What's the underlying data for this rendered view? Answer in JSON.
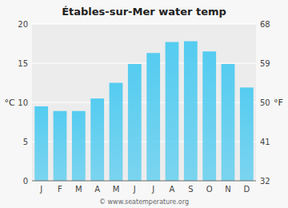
{
  "chart_data": {
    "type": "bar",
    "title": "Étables-sur-Mer water temp",
    "categories": [
      "J",
      "F",
      "M",
      "A",
      "M",
      "J",
      "J",
      "A",
      "S",
      "O",
      "N",
      "D"
    ],
    "values": [
      9.5,
      8.9,
      8.9,
      10.5,
      12.5,
      14.9,
      16.3,
      17.7,
      17.8,
      16.5,
      14.9,
      11.9
    ],
    "color": "#55ccf0",
    "ylim": [
      0,
      20
    ],
    "yticks": [
      0,
      5,
      10,
      15,
      20
    ],
    "y2lim": [
      32,
      68
    ],
    "y2ticks": [
      32,
      41,
      50,
      59,
      68
    ],
    "ylabel": "°C",
    "y2label": "°F",
    "annotation": "© www.seatemperature.org",
    "grid": true
  }
}
